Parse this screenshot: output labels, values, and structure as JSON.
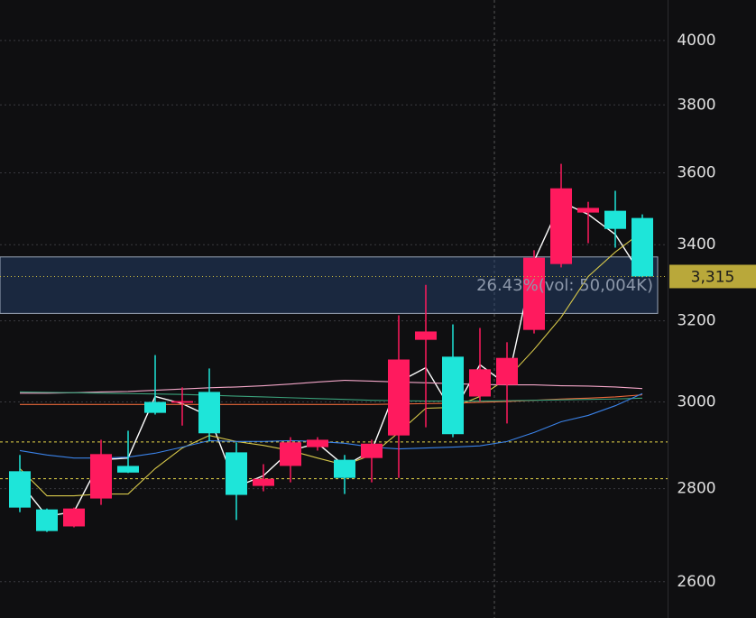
{
  "chart_data": {
    "type": "candlestick",
    "log_scale": true,
    "ylim": [
      2526,
      4131
    ],
    "yticks": [
      2600,
      2800,
      3000,
      3200,
      3400,
      3600,
      3800,
      4000
    ],
    "grid": true,
    "up_color": "#ff1a5e",
    "down_color": "#1ee5d9",
    "open": [
      2839,
      2754,
      2717,
      2778,
      2851,
      3000,
      2998,
      3024,
      2882,
      2806,
      2851,
      2894,
      2865,
      2869,
      2921,
      3152,
      3110,
      3013,
      3041,
      3177,
      3348,
      3488,
      3493,
      3473
    ],
    "high": [
      2876,
      2756,
      2758,
      2911,
      2932,
      3114,
      3035,
      3081,
      2905,
      2855,
      2917,
      2917,
      2876,
      2911,
      3214,
      3293,
      3191,
      3182,
      3146,
      3385,
      3626,
      3518,
      3549,
      3483
    ],
    "low": [
      2748,
      2705,
      2715,
      2764,
      2835,
      2970,
      2944,
      2907,
      2731,
      2794,
      2814,
      2886,
      2788,
      2814,
      2824,
      2940,
      2917,
      3002,
      2949,
      3168,
      3339,
      3404,
      3392,
      3313
    ],
    "close": [
      2758,
      2707,
      2756,
      2878,
      2836,
      2974,
      3002,
      2926,
      2786,
      2822,
      2905,
      2911,
      2824,
      2902,
      3103,
      3173,
      2924,
      3079,
      3107,
      3365,
      3556,
      3501,
      3443,
      3315
    ],
    "overlays": [
      {
        "color": "#ffffff",
        "values": [
          2814,
          2739,
          2749,
          2865,
          2869,
          3013,
          2996,
          2966,
          2804,
          2829,
          2886,
          2903,
          2851,
          2886,
          3048,
          3083,
          2974,
          3090,
          3041,
          3356,
          3518,
          3483,
          3428,
          3315
        ]
      },
      {
        "color": "#d8c94a",
        "values": [
          2845,
          2784,
          2784,
          2788,
          2788,
          2845,
          2892,
          2921,
          2907,
          2898,
          2886,
          2869,
          2853,
          2876,
          2928,
          2985,
          2987,
          3013,
          3056,
          3128,
          3209,
          3315,
          3380,
          3436
        ]
      },
      {
        "color": "#f3a6c8",
        "values": [
          3021,
          3021,
          3022,
          3024,
          3025,
          3028,
          3031,
          3034,
          3036,
          3039,
          3043,
          3048,
          3052,
          3050,
          3048,
          3046,
          3044,
          3042,
          3041,
          3041,
          3039,
          3038,
          3036,
          3032
        ]
      },
      {
        "color": "#e8673a",
        "values": [
          2994,
          2994,
          2994,
          2994,
          2994,
          2994,
          2994,
          2994,
          2994,
          2994,
          2994,
          2994,
          2994,
          2994,
          2995,
          2996,
          2997,
          2999,
          3001,
          3004,
          3007,
          3009,
          3012,
          3017
        ]
      },
      {
        "color": "#3aa07a",
        "values": [
          3024,
          3023,
          3022,
          3021,
          3020,
          3019,
          3018,
          3016,
          3014,
          3012,
          3010,
          3008,
          3006,
          3004,
          3003,
          3002,
          3002,
          3002,
          3003,
          3004,
          3005,
          3006,
          3007,
          3009
        ]
      },
      {
        "color": "#3a82e8",
        "values": [
          2886,
          2876,
          2869,
          2869,
          2871,
          2880,
          2894,
          2909,
          2907,
          2907,
          2909,
          2907,
          2903,
          2894,
          2890,
          2892,
          2894,
          2897,
          2907,
          2928,
          2953,
          2968,
          2991,
          3020
        ]
      }
    ],
    "levels": [
      2906,
      2822
    ],
    "level_color": "#e6d84a",
    "range_box": {
      "high": 3367,
      "low": 3219,
      "label": "26.43%(vol: 50,004K)"
    },
    "last_price": {
      "value": 3315,
      "label": "3,315"
    }
  }
}
